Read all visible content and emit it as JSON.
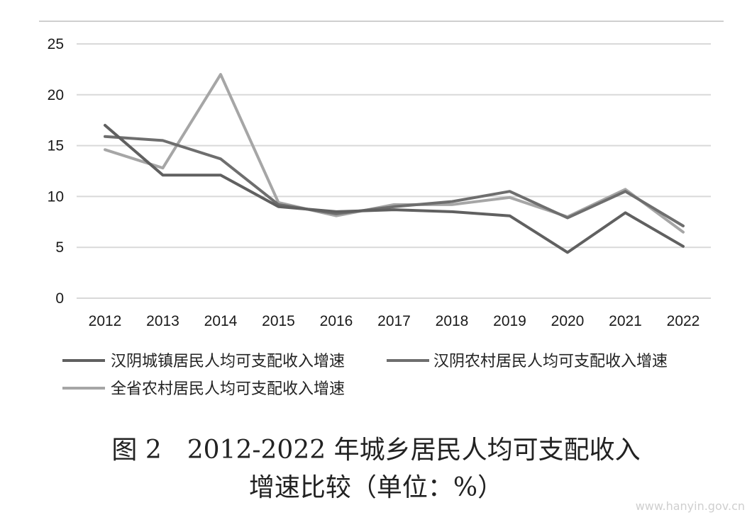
{
  "chart_data": {
    "type": "line",
    "categories": [
      "2012",
      "2013",
      "2014",
      "2015",
      "2016",
      "2017",
      "2018",
      "2019",
      "2020",
      "2021",
      "2022"
    ],
    "ylim": [
      0,
      25
    ],
    "yticks": [
      0,
      5,
      10,
      15,
      20,
      25
    ],
    "grid": true,
    "legend_position": "bottom",
    "series": [
      {
        "name": "汉阴城镇居民人均可支配收入增速",
        "color": "#606060",
        "values": [
          17.0,
          12.1,
          12.1,
          9.0,
          8.5,
          8.7,
          8.5,
          8.1,
          4.5,
          8.4,
          5.1
        ]
      },
      {
        "name": "汉阴农村居民人均可支配收入增速",
        "color": "#6e6e6e",
        "values": [
          15.9,
          15.5,
          13.7,
          9.2,
          8.3,
          9.0,
          9.5,
          10.5,
          7.9,
          10.5,
          7.1
        ]
      },
      {
        "name": "全省农村居民人均可支配收入增速",
        "color": "#a6a6a6",
        "values": [
          14.6,
          12.8,
          22.0,
          9.4,
          8.1,
          9.2,
          9.2,
          9.9,
          8.0,
          10.7,
          6.5
        ]
      }
    ]
  },
  "caption": {
    "line1": "图 2　2012-2022 年城乡居民人均可支配收入",
    "line2": "增速比较（单位：%）"
  },
  "watermark": "www.hanyin.gov.cn"
}
